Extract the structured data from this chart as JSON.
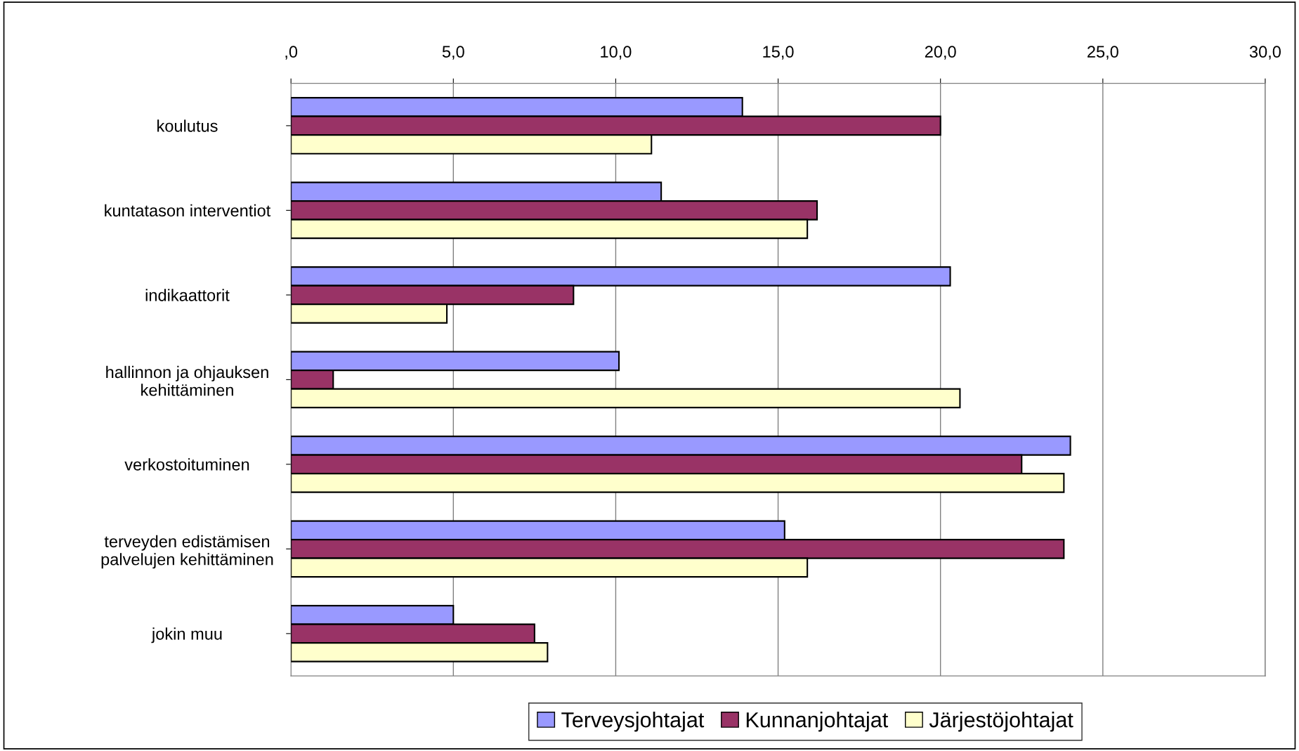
{
  "chart_data": {
    "type": "bar",
    "orientation": "horizontal",
    "categories": [
      "koulutus",
      "kuntatason interventiot",
      "indikaattorit",
      "hallinnon ja ohjauksen\nkehittäminen",
      "verkostoituminen",
      "terveyden edistämisen\npalvelujen kehittäminen",
      "jokin muu"
    ],
    "series": [
      {
        "name": "Terveysjohtajat",
        "color": "#9999ff",
        "values": [
          13.9,
          11.4,
          20.3,
          10.1,
          24.0,
          15.2,
          5.0
        ]
      },
      {
        "name": "Kunnanjohtajat",
        "color": "#993366",
        "values": [
          20.0,
          16.2,
          8.7,
          1.3,
          22.5,
          23.8,
          7.5
        ]
      },
      {
        "name": "Järjestöjohtajat",
        "color": "#ffffcc",
        "values": [
          11.1,
          15.9,
          4.8,
          20.6,
          23.8,
          15.9,
          7.9
        ]
      }
    ],
    "xlim": [
      0,
      30
    ],
    "xticks": [
      {
        "value": 0,
        "label": ",0"
      },
      {
        "value": 5,
        "label": "5,0"
      },
      {
        "value": 10,
        "label": "10,0"
      },
      {
        "value": 15,
        "label": "15,0"
      },
      {
        "value": 20,
        "label": "20,0"
      },
      {
        "value": 25,
        "label": "25,0"
      },
      {
        "value": 30,
        "label": "30,0"
      }
    ],
    "grid": "x",
    "legend": "bottom"
  }
}
